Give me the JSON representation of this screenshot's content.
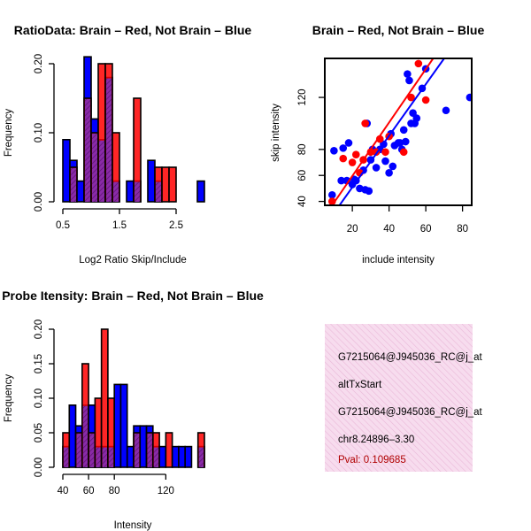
{
  "chart_data": [
    {
      "id": "ratio_hist",
      "type": "histogram",
      "title": "RatioData: Brain – Red, Not Brain – Blue",
      "xlabel": "Log2 Ratio Skip/Include",
      "ylabel": "Frequency",
      "xlim": [
        0.5,
        3.0
      ],
      "ylim": [
        0,
        0.2
      ],
      "xticks": [
        0.5,
        1.5,
        2.5
      ],
      "xtick_labels": [
        "0.5",
        "1.5",
        "2.5"
      ],
      "yticks": [
        0.0,
        0.1,
        0.2
      ],
      "ytick_labels": [
        "0.00",
        "0.10",
        "0.20"
      ],
      "bin_width": 0.125,
      "bin_starts": [
        0.5,
        0.625,
        0.75,
        0.875,
        1.0,
        1.125,
        1.25,
        1.375,
        1.5,
        1.625,
        1.75,
        1.875,
        2.0,
        2.125,
        2.25,
        2.375,
        2.5,
        2.625,
        2.75,
        2.875
      ],
      "series": [
        {
          "name": "Not Brain",
          "color": "#0000ff",
          "values": [
            0.09,
            0.06,
            0.03,
            0.21,
            0.12,
            0.09,
            0.18,
            0.03,
            0.0,
            0.03,
            0.03,
            0.0,
            0.06,
            0.03,
            0.0,
            0.0,
            0.0,
            0.0,
            0.0,
            0.03
          ]
        },
        {
          "name": "Brain",
          "color": "#ff0000",
          "values": [
            0.0,
            0.05,
            0.0,
            0.15,
            0.1,
            0.2,
            0.2,
            0.1,
            0.0,
            0.0,
            0.15,
            0.0,
            0.0,
            0.05,
            0.05,
            0.05,
            0.0,
            0.0,
            0.0,
            0.0
          ]
        }
      ]
    },
    {
      "id": "scatter",
      "type": "scatter",
      "title": "Brain – Red, Not Brain – Blue",
      "xlabel": "include intensity",
      "ylabel": "skip intensity",
      "xlim": [
        5,
        85
      ],
      "ylim": [
        37,
        150
      ],
      "xticks": [
        20,
        40,
        60,
        80
      ],
      "xtick_labels": [
        "20",
        "40",
        "60",
        "80"
      ],
      "yticks": [
        40,
        60,
        80,
        120
      ],
      "ytick_labels": [
        "40",
        "60",
        "80",
        "120"
      ],
      "series": [
        {
          "name": "Not Brain",
          "color": "#0000ff",
          "x": [
            9,
            10,
            14,
            15,
            17,
            18,
            20,
            21,
            22,
            24,
            26,
            27,
            28,
            29,
            30,
            31,
            33,
            35,
            37,
            38,
            40,
            41,
            42,
            43,
            45,
            46,
            47,
            48,
            49,
            50,
            51,
            52,
            53,
            54,
            55,
            58,
            60,
            71,
            84
          ],
          "y": [
            45,
            79,
            56,
            81,
            56,
            85,
            53,
            57,
            56,
            50,
            64,
            49,
            100,
            48,
            72,
            80,
            66,
            80,
            84,
            71,
            62,
            92,
            67,
            83,
            85,
            85,
            80,
            95,
            86,
            138,
            133,
            100,
            108,
            100,
            104,
            127,
            142,
            110,
            120
          ]
        },
        {
          "name": "Brain",
          "color": "#ff0000",
          "x": [
            9,
            15,
            20,
            22,
            24,
            26,
            27,
            30,
            33,
            35,
            38,
            40,
            48,
            52,
            56,
            60
          ],
          "y": [
            40,
            73,
            70,
            76,
            62,
            72,
            100,
            78,
            78,
            88,
            78,
            90,
            78,
            120,
            146,
            118
          ]
        }
      ],
      "fit_lines": [
        {
          "name": "Not Brain fit",
          "color": "#0000ff",
          "x": [
            13,
            70
          ],
          "y": [
            37,
            150
          ]
        },
        {
          "name": "Brain fit",
          "color": "#ff0000",
          "x": [
            9,
            64
          ],
          "y": [
            37,
            150
          ]
        }
      ]
    },
    {
      "id": "intensity_hist",
      "type": "histogram",
      "title": "Probe Itensity: Brain – Red, Not Brain – Blue",
      "xlabel": "Intensity",
      "ylabel": "Frequency",
      "xlim": [
        40,
        150
      ],
      "ylim": [
        0,
        0.2
      ],
      "xticks": [
        40,
        60,
        80,
        120
      ],
      "xtick_labels": [
        "40",
        "60",
        "80",
        "120"
      ],
      "yticks": [
        0.0,
        0.05,
        0.1,
        0.15,
        0.2
      ],
      "ytick_labels": [
        "0.00",
        "0.05",
        "0.10",
        "0.15",
        "0.20"
      ],
      "bin_width": 5,
      "bin_starts": [
        40,
        45,
        50,
        55,
        60,
        65,
        70,
        75,
        80,
        85,
        90,
        95,
        100,
        105,
        110,
        115,
        120,
        125,
        130,
        135,
        140,
        145
      ],
      "series": [
        {
          "name": "Not Brain",
          "color": "#0000ff",
          "values": [
            0.03,
            0.09,
            0.06,
            0.09,
            0.09,
            0.03,
            0.03,
            0.03,
            0.12,
            0.12,
            0.03,
            0.06,
            0.06,
            0.06,
            0.03,
            0.03,
            0.0,
            0.03,
            0.03,
            0.03,
            0.0,
            0.03
          ]
        },
        {
          "name": "Brain",
          "color": "#ff0000",
          "values": [
            0.05,
            0.0,
            0.05,
            0.15,
            0.05,
            0.1,
            0.2,
            0.1,
            0.0,
            0.0,
            0.0,
            0.05,
            0.0,
            0.05,
            0.05,
            0.0,
            0.05,
            0.0,
            0.0,
            0.0,
            0.0,
            0.05
          ]
        }
      ]
    }
  ],
  "info_panel": {
    "lines": [
      "G7215064@J945036_RC@j_at",
      "altTxStart",
      "G7215064@J945036_RC@j_at",
      "chr8.24896–3.30"
    ],
    "pval": "Pval: 0.109685",
    "background": "#f7dcee",
    "hatch_color": "#eab8d8"
  }
}
